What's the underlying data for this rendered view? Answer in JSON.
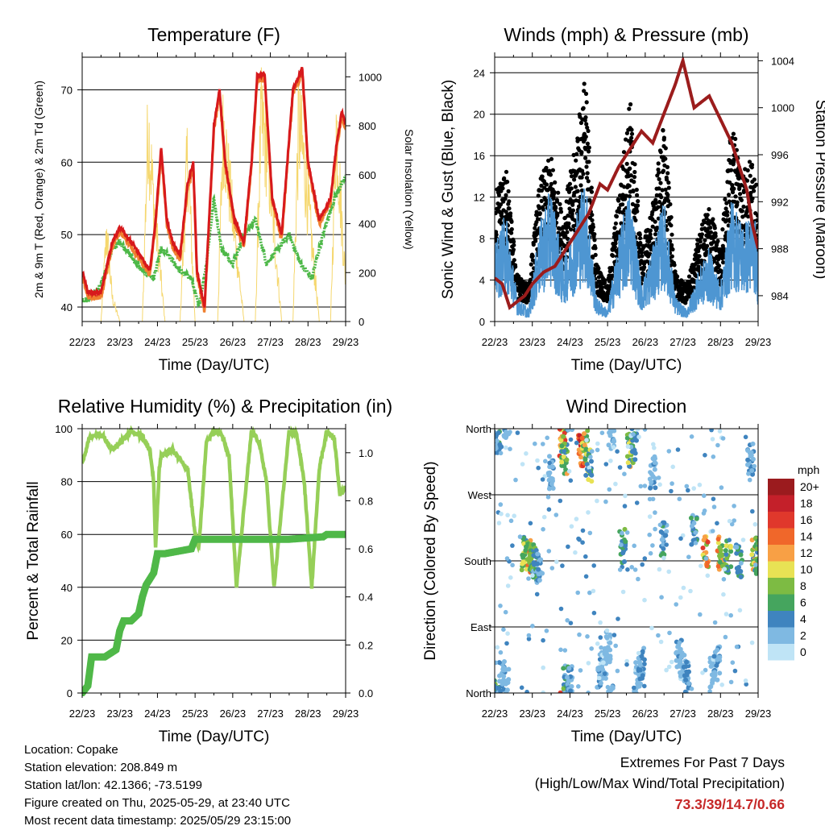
{
  "colors": {
    "temp2m": "#d7191c",
    "temp9m": "#f08030",
    "dewpoint": "#4db848",
    "solar": "#f5d76e",
    "gust": "#000000",
    "wind": "#4e96d2",
    "pressure": "#9b1c1c",
    "rh": "#96cf58",
    "precip": "#4fb848"
  },
  "x_ticks": [
    "22/23",
    "23/23",
    "24/23",
    "25/23",
    "26/23",
    "27/23",
    "28/23",
    "29/23"
  ],
  "charts": [
    {
      "title": "Temperature (F)",
      "xlabel": "Time (Day/UTC)",
      "ylabel_left": "2m & 9m T (Red, Orange) & 2m Td (Green)",
      "ylabel_right": "Solar Insolation (Yellow)",
      "yticks_left": [
        "40",
        "50",
        "60",
        "70"
      ],
      "yticks_right": [
        "0",
        "200",
        "400",
        "600",
        "800",
        "1000"
      ]
    },
    {
      "title": "Winds (mph) & Pressure (mb)",
      "xlabel": "Time (Day/UTC)",
      "ylabel_left": "Sonic Wind & Gust (Blue, Black)",
      "ylabel_right": "Station Pressure (Maroon)",
      "yticks_left": [
        "0",
        "4",
        "8",
        "12",
        "16",
        "20",
        "24"
      ],
      "yticks_right": [
        "984",
        "988",
        "992",
        "996",
        "1000",
        "1004"
      ]
    },
    {
      "title": "Relative Humidity (%) & Precipitation (in)",
      "xlabel": "Time (Day/UTC)",
      "ylabel_left": "Percent & Total Rainfall",
      "ylabel_right": "",
      "yticks_left": [
        "0",
        "20",
        "40",
        "60",
        "80",
        "100"
      ],
      "yticks_right": [
        "0.0",
        "0.2",
        "0.4",
        "0.6",
        "0.8",
        "1.0"
      ]
    },
    {
      "title": "Wind Direction",
      "xlabel": "Time (Day/UTC)",
      "ylabel_left": "Direction (Colored By Speed)",
      "ylabel_right": "",
      "yticks_left": [
        "North",
        "East",
        "South",
        "West",
        "North"
      ],
      "yticks_right": []
    }
  ],
  "legend": {
    "unit": "mph",
    "labels": [
      "20+",
      "18",
      "16",
      "14",
      "12",
      "10",
      "8",
      "6",
      "4",
      "2",
      "0"
    ],
    "colors": [
      "#9b1b1e",
      "#c4202a",
      "#e0382c",
      "#f0672a",
      "#f8a045",
      "#e8e254",
      "#7dbb43",
      "#45a55e",
      "#3f84bf",
      "#7fb9e2",
      "#bfe4f6"
    ]
  },
  "chart_data": [
    {
      "type": "line",
      "title": "Temperature (F)",
      "x": [
        "22/23",
        "23/23",
        "24/23",
        "25/23",
        "26/23",
        "27/23",
        "28/23",
        "29/23"
      ],
      "ylim": [
        38,
        74.5
      ],
      "y2lim": [
        0,
        1080
      ],
      "series": [
        {
          "name": "2m T",
          "axis": "left",
          "x": [
            0,
            0.15,
            0.5,
            0.8,
            1.0,
            1.3,
            1.55,
            1.8,
            1.95,
            2.1,
            2.25,
            2.4,
            2.6,
            2.8,
            2.95,
            3.05,
            3.25,
            3.5,
            3.65,
            3.8,
            4.05,
            4.3,
            4.5,
            4.65,
            4.85,
            5.05,
            5.3,
            5.6,
            5.85,
            6.0,
            6.3,
            6.6,
            6.75,
            6.9,
            7.0
          ],
          "y": [
            45,
            42,
            42,
            49,
            51,
            49,
            47,
            45,
            52,
            62,
            52,
            49,
            47,
            57,
            60,
            45,
            40,
            65,
            70,
            60,
            52,
            49,
            60,
            72,
            72,
            55,
            50,
            70,
            73,
            60,
            52,
            55,
            62,
            67,
            65
          ]
        },
        {
          "name": "2m Td",
          "axis": "left",
          "x": [
            0,
            0.2,
            0.5,
            0.8,
            1.0,
            1.3,
            1.6,
            1.9,
            2.1,
            2.3,
            2.6,
            2.9,
            3.1,
            3.3,
            3.5,
            3.7,
            4.0,
            4.3,
            4.6,
            4.9,
            5.2,
            5.5,
            5.8,
            6.1,
            6.4,
            6.7,
            7.0
          ],
          "y": [
            41,
            41,
            43,
            48,
            49,
            47,
            45,
            44,
            48,
            47,
            45,
            44,
            40,
            46,
            55,
            48,
            46,
            50,
            52,
            46,
            48,
            50,
            46,
            44,
            50,
            55,
            58
          ]
        },
        {
          "name": "Solar Insolation",
          "axis": "right",
          "x": [
            0,
            0.5,
            0.65,
            0.8,
            1.0,
            1.3,
            1.6,
            1.75,
            1.9,
            2.2,
            2.6,
            2.8,
            3.0,
            3.3,
            3.6,
            3.75,
            3.9,
            4.3,
            4.6,
            4.75,
            4.9,
            5.3,
            5.6,
            5.75,
            5.9,
            6.3,
            6.6,
            6.75,
            6.9,
            7.0
          ],
          "y": [
            0,
            0,
            450,
            120,
            0,
            0,
            0,
            1000,
            600,
            0,
            0,
            850,
            0,
            0,
            0,
            1000,
            700,
            0,
            0,
            1000,
            900,
            0,
            0,
            1000,
            800,
            0,
            0,
            1000,
            500,
            200
          ]
        }
      ]
    },
    {
      "type": "line",
      "title": "Winds (mph) & Pressure (mb)",
      "x": [
        "22/23",
        "23/23",
        "24/23",
        "25/23",
        "26/23",
        "27/23",
        "28/23",
        "29/23"
      ],
      "ylim": [
        0,
        25.5
      ],
      "y2lim": [
        981.8,
        1004.3
      ],
      "series": [
        {
          "name": "Station Pressure",
          "axis": "right",
          "x": [
            0,
            0.2,
            0.4,
            0.6,
            0.8,
            1.0,
            1.3,
            1.6,
            1.9,
            2.2,
            2.5,
            2.8,
            3.0,
            3.3,
            3.6,
            3.9,
            4.2,
            4.5,
            4.8,
            5.0,
            5.15,
            5.3,
            5.5,
            5.7,
            6.0,
            6.3,
            6.5,
            6.7,
            6.85,
            7.0
          ],
          "y": [
            985.5,
            985,
            983,
            983.5,
            984,
            985,
            986,
            986.5,
            988,
            989.5,
            991,
            993.5,
            993,
            995,
            996.5,
            998,
            997,
            999.5,
            1002,
            1004,
            1002,
            1000,
            1000.5,
            1001,
            999,
            997,
            995,
            993,
            990,
            988
          ]
        },
        {
          "name": "Sonic Wind",
          "axis": "left",
          "x": [
            0,
            0.3,
            0.6,
            0.9,
            1.2,
            1.5,
            1.8,
            2.1,
            2.4,
            2.7,
            3.0,
            3.3,
            3.6,
            3.9,
            4.2,
            4.5,
            4.8,
            5.1,
            5.4,
            5.7,
            6.0,
            6.3,
            6.6,
            6.9,
            7.0
          ],
          "y": [
            6,
            9,
            2,
            1,
            8,
            11,
            5,
            8,
            12,
            2,
            1,
            7,
            11,
            3,
            6,
            10,
            2,
            1,
            4,
            6,
            3,
            10,
            8,
            9,
            5
          ]
        },
        {
          "name": "Gust",
          "axis": "left",
          "x": [
            0,
            0.3,
            0.6,
            0.9,
            1.2,
            1.5,
            1.8,
            2.1,
            2.4,
            2.7,
            3.0,
            3.3,
            3.6,
            3.9,
            4.2,
            4.5,
            4.8,
            5.1,
            5.4,
            5.7,
            6.0,
            6.3,
            6.6,
            6.9,
            7.0
          ],
          "y": [
            11,
            13,
            4,
            3,
            12,
            14,
            9,
            14,
            21,
            5,
            3,
            11,
            19,
            6,
            10,
            17,
            4,
            3,
            7,
            10,
            6,
            17,
            13,
            14,
            9
          ]
        }
      ]
    },
    {
      "type": "line",
      "title": "Relative Humidity (%) & Precipitation (in)",
      "x": [
        "22/23",
        "23/23",
        "24/23",
        "25/23",
        "26/23",
        "27/23",
        "28/23",
        "29/23"
      ],
      "ylim": [
        0,
        100
      ],
      "y2lim": [
        0,
        1.1
      ],
      "series": [
        {
          "name": "Relative Humidity",
          "axis": "left",
          "x": [
            0,
            0.2,
            0.5,
            0.8,
            1.1,
            1.3,
            1.6,
            1.8,
            1.9,
            1.95,
            2.05,
            2.1,
            2.4,
            2.8,
            3.0,
            3.1,
            3.3,
            3.5,
            3.7,
            3.9,
            4.1,
            4.3,
            4.5,
            4.7,
            4.9,
            5.1,
            5.3,
            5.5,
            5.7,
            5.9,
            6.1,
            6.3,
            6.5,
            6.7,
            6.85,
            7.0
          ],
          "y": [
            87,
            97,
            98,
            92,
            96,
            99,
            97,
            92,
            80,
            55,
            85,
            90,
            92,
            85,
            60,
            55,
            95,
            99,
            98,
            90,
            40,
            70,
            99,
            95,
            80,
            40,
            70,
            99,
            98,
            80,
            40,
            85,
            99,
            96,
            75,
            78
          ]
        },
        {
          "name": "Total Rainfall",
          "axis": "right",
          "x": [
            0,
            0.15,
            0.25,
            0.3,
            0.6,
            0.9,
            1.0,
            1.1,
            1.3,
            1.5,
            1.6,
            1.7,
            1.9,
            2.0,
            2.2,
            2.9,
            3.0,
            3.6,
            4.5,
            5.5,
            6.4,
            6.5,
            6.75,
            7.0
          ],
          "y": [
            0,
            0.03,
            0.15,
            0.15,
            0.15,
            0.18,
            0.26,
            0.3,
            0.3,
            0.33,
            0.4,
            0.45,
            0.5,
            0.58,
            0.58,
            0.6,
            0.64,
            0.64,
            0.64,
            0.64,
            0.65,
            0.66,
            0.66,
            0.66
          ]
        }
      ]
    },
    {
      "type": "scatter",
      "title": "Wind Direction",
      "x": [
        "22/23",
        "23/23",
        "24/23",
        "25/23",
        "26/23",
        "27/23",
        "28/23",
        "29/23"
      ],
      "ylim": [
        0,
        360
      ],
      "categories": [
        "North",
        "East",
        "South",
        "West",
        "North"
      ],
      "series": [
        {
          "name": "Wind Direction",
          "x": [
            0.05,
            0.1,
            0.2,
            0.3,
            0.8,
            0.9,
            1.0,
            1.1,
            1.2,
            1.5,
            1.8,
            1.85,
            1.9,
            2.0,
            2.3,
            2.4,
            2.5,
            2.8,
            2.9,
            3.0,
            3.1,
            3.4,
            3.6,
            3.7,
            3.8,
            3.9,
            4.2,
            4.5,
            4.9,
            5.0,
            5.1,
            5.3,
            5.6,
            5.8,
            5.9,
            6.0,
            6.2,
            6.5,
            6.8,
            6.9,
            7.0
          ],
          "y": [
            355,
            350,
            20,
            10,
            190,
            185,
            180,
            175,
            170,
            300,
            340,
            320,
            20,
            15,
            330,
            335,
            310,
            30,
            40,
            60,
            350,
            200,
            330,
            340,
            20,
            40,
            300,
            210,
            50,
            40,
            20,
            220,
            190,
            30,
            40,
            190,
            185,
            180,
            320,
            190,
            185
          ],
          "speeds": [
            6,
            4,
            3,
            2,
            10,
            12,
            8,
            6,
            4,
            3,
            14,
            10,
            6,
            4,
            16,
            12,
            8,
            4,
            2,
            2,
            3,
            6,
            10,
            6,
            2,
            4,
            3,
            5,
            3,
            2,
            4,
            5,
            14,
            2,
            3,
            12,
            8,
            6,
            4,
            10,
            8
          ]
        }
      ]
    }
  ],
  "info": {
    "location": "Location: Copake",
    "elevation": "Station elevation: 208.849 m",
    "latlon": "Station lat/lon: 42.1366; -73.5199",
    "created": "Figure created on Thu, 2025-05-29, at 23:40 UTC",
    "recent": "Most recent data timestamp: 2025/05/29 23:15:00"
  },
  "extremes": {
    "line1": "Extremes For Past 7 Days",
    "line2": "(High/Low/Max Wind/Total Precipitation)",
    "values": "73.3/39/14.7/0.66"
  }
}
